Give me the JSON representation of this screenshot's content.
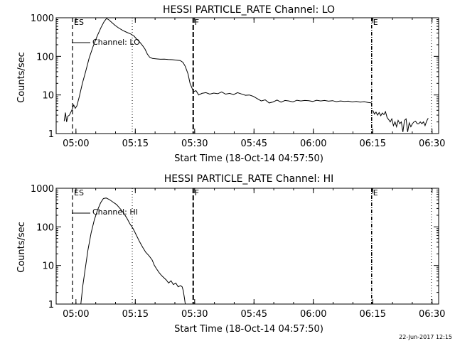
{
  "stamp": "22-Jun-2017 12:15",
  "chart_data": [
    {
      "type": "line",
      "title": "HESSI PARTICLE_RATE Channel: LO",
      "xlabel": "Start Time (18-Oct-14 04:57:50)",
      "ylabel": "Counts/sec",
      "yscale": "log",
      "ylim": [
        1,
        1000
      ],
      "yticks": [
        1,
        10,
        100,
        1000
      ],
      "ytick_labels": [
        "1",
        "10",
        "100",
        "1000"
      ],
      "xlim_minutes": [
        -2.8333,
        93.8333
      ],
      "xticks": [
        2.1667,
        17.1667,
        32.1667,
        47.1667,
        62.1667,
        77.1667,
        92.1667
      ],
      "xtick_labels": [
        "05:00",
        "05:15",
        "05:30",
        "05:45",
        "06:00",
        "06:15",
        "06:30"
      ],
      "grid": false,
      "legend": {
        "label": "Channel: LO",
        "placement": "upper-left"
      },
      "markers": [
        {
          "x": 1.3,
          "style": "dashed",
          "label": "E",
          "label2": "S"
        },
        {
          "x": 16.4,
          "style": "dotted"
        },
        {
          "x": 31.8,
          "style": "dashed-bold",
          "label": "F"
        },
        {
          "x": 76.9,
          "style": "dash-dot",
          "label": "E"
        },
        {
          "x": 92.0,
          "style": "dotted"
        }
      ],
      "segments": [
        {
          "name": "Channel: LO",
          "points": [
            [
              -0.8,
              2.1
            ],
            [
              -0.5,
              3.5
            ],
            [
              -0.2,
              2.0
            ],
            [
              0.1,
              2.8
            ],
            [
              0.5,
              3.0
            ],
            [
              1.1,
              4.0
            ],
            [
              1.6,
              5.5
            ],
            [
              2.0,
              4.5
            ],
            [
              2.4,
              5.2
            ],
            [
              3.0,
              9
            ],
            [
              3.8,
              20
            ],
            [
              4.6,
              40
            ],
            [
              5.5,
              90
            ],
            [
              6.5,
              180
            ],
            [
              7.5,
              330
            ],
            [
              8.5,
              560
            ],
            [
              9.3,
              800
            ],
            [
              9.9,
              960
            ],
            [
              10.5,
              880
            ],
            [
              11.2,
              760
            ],
            [
              12.0,
              640
            ],
            [
              13.0,
              540
            ],
            [
              14.0,
              470
            ],
            [
              15.0,
              420
            ],
            [
              16.0,
              380
            ],
            [
              16.8,
              340
            ],
            [
              17.5,
              280
            ],
            [
              18.2,
              240
            ],
            [
              19.0,
              190
            ],
            [
              19.6,
              155
            ],
            [
              20.2,
              115
            ],
            [
              20.8,
              95
            ],
            [
              21.5,
              88
            ],
            [
              22.5,
              86
            ],
            [
              23.5,
              84
            ],
            [
              24.5,
              85
            ],
            [
              25.5,
              83
            ],
            [
              26.5,
              82
            ],
            [
              27.5,
              80
            ],
            [
              28.5,
              78
            ],
            [
              29.2,
              70
            ],
            [
              29.8,
              55
            ],
            [
              30.5,
              35
            ],
            [
              31.0,
              20
            ],
            [
              31.5,
              15
            ],
            [
              31.8,
              12.5
            ]
          ]
        },
        {
          "name": "Channel: LO",
          "points": [
            [
              31.8,
              12
            ],
            [
              32.5,
              13
            ],
            [
              33.2,
              10
            ],
            [
              34.0,
              11
            ],
            [
              35.0,
              11.5
            ],
            [
              36.0,
              10.5
            ],
            [
              37.0,
              11.2
            ],
            [
              38.0,
              10.8
            ],
            [
              39.0,
              12
            ],
            [
              40.0,
              10.5
            ],
            [
              41.0,
              11
            ],
            [
              42.0,
              10.2
            ],
            [
              43.0,
              11.5
            ],
            [
              44.0,
              10.6
            ],
            [
              45.0,
              9.8
            ],
            [
              46.0,
              10
            ],
            [
              47.0,
              9.2
            ],
            [
              48.0,
              8
            ],
            [
              49.0,
              7
            ],
            [
              50.0,
              7.5
            ],
            [
              51.0,
              6.2
            ],
            [
              52.0,
              6.6
            ],
            [
              53.0,
              7.4
            ],
            [
              54.0,
              6.5
            ],
            [
              55.0,
              7.2
            ],
            [
              56.0,
              7.0
            ],
            [
              57.0,
              6.6
            ],
            [
              58.0,
              7.3
            ],
            [
              59.0,
              7.0
            ],
            [
              60.0,
              7.2
            ],
            [
              61.0,
              7.1
            ],
            [
              62.0,
              6.8
            ],
            [
              63.0,
              7.3
            ],
            [
              64.0,
              7.0
            ],
            [
              65.0,
              7.2
            ],
            [
              66.0,
              6.9
            ],
            [
              67.0,
              7.1
            ],
            [
              68.0,
              6.7
            ],
            [
              69.0,
              7.0
            ],
            [
              70.0,
              6.8
            ],
            [
              71.0,
              6.9
            ],
            [
              72.0,
              6.6
            ],
            [
              73.0,
              6.8
            ],
            [
              74.0,
              6.5
            ],
            [
              75.0,
              6.7
            ],
            [
              76.0,
              6.4
            ],
            [
              76.9,
              6.2
            ]
          ]
        },
        {
          "name": "Channel: LO",
          "points": [
            [
              77.2,
              4.0
            ],
            [
              77.6,
              3.2
            ],
            [
              78.0,
              3.6
            ],
            [
              78.4,
              3.0
            ],
            [
              78.8,
              3.5
            ],
            [
              79.2,
              2.9
            ],
            [
              79.6,
              3.4
            ],
            [
              80.0,
              3.1
            ],
            [
              80.4,
              3.7
            ],
            [
              80.8,
              2.6
            ],
            [
              81.2,
              2.3
            ],
            [
              81.6,
              2.0
            ],
            [
              82.0,
              2.4
            ],
            [
              82.4,
              1.6
            ],
            [
              82.8,
              2.0
            ],
            [
              83.2,
              1.5
            ],
            [
              83.6,
              2.2
            ],
            [
              84.0,
              1.8
            ],
            [
              84.4,
              2.0
            ],
            [
              84.8,
              1.1
            ],
            [
              85.2,
              2.2
            ],
            [
              85.6,
              2.4
            ],
            [
              86.0,
              1.1
            ],
            [
              86.4,
              1.9
            ],
            [
              86.8,
              1.5
            ],
            [
              87.2,
              1.8
            ],
            [
              87.6,
              2.0
            ],
            [
              88.0,
              2.1
            ],
            [
              88.4,
              1.8
            ],
            [
              88.8,
              1.8
            ],
            [
              89.2,
              2.0
            ],
            [
              89.6,
              1.8
            ],
            [
              90.0,
              2.0
            ],
            [
              90.4,
              1.6
            ],
            [
              90.8,
              2.1
            ],
            [
              91.2,
              2.5
            ]
          ]
        }
      ]
    },
    {
      "type": "line",
      "title": "HESSI PARTICLE_RATE Channel: HI",
      "xlabel": "Start Time (18-Oct-14 04:57:50)",
      "ylabel": "Counts/sec",
      "yscale": "log",
      "ylim": [
        1,
        1000
      ],
      "yticks": [
        1,
        10,
        100,
        1000
      ],
      "ytick_labels": [
        "1",
        "10",
        "100",
        "1000"
      ],
      "xlim_minutes": [
        -2.8333,
        93.8333
      ],
      "xticks": [
        2.1667,
        17.1667,
        32.1667,
        47.1667,
        62.1667,
        77.1667,
        92.1667
      ],
      "xtick_labels": [
        "05:00",
        "05:15",
        "05:30",
        "05:45",
        "06:00",
        "06:15",
        "06:30"
      ],
      "grid": false,
      "legend": {
        "label": "Channel: HI",
        "placement": "upper-left"
      },
      "markers": [
        {
          "x": 1.3,
          "style": "dashed",
          "label": "E",
          "label2": "S"
        },
        {
          "x": 16.4,
          "style": "dotted"
        },
        {
          "x": 31.8,
          "style": "dashed-bold",
          "label": "F"
        },
        {
          "x": 76.9,
          "style": "dash-dot",
          "label": "E"
        },
        {
          "x": 92.0,
          "style": "dotted"
        }
      ],
      "segments": [
        {
          "name": "Channel: HI",
          "points": [
            [
              3.4,
              1.0
            ],
            [
              3.9,
              3
            ],
            [
              4.5,
              8
            ],
            [
              5.2,
              25
            ],
            [
              6.0,
              70
            ],
            [
              6.8,
              150
            ],
            [
              7.6,
              270
            ],
            [
              8.4,
              420
            ],
            [
              9.1,
              540
            ],
            [
              9.8,
              560
            ],
            [
              10.6,
              510
            ],
            [
              11.5,
              440
            ],
            [
              12.4,
              380
            ],
            [
              13.3,
              300
            ],
            [
              14.2,
              230
            ],
            [
              15.0,
              170
            ],
            [
              15.8,
              120
            ],
            [
              16.6,
              90
            ],
            [
              17.4,
              62
            ],
            [
              18.2,
              42
            ],
            [
              19.0,
              30
            ],
            [
              19.8,
              22
            ],
            [
              20.6,
              18
            ],
            [
              21.4,
              14
            ],
            [
              22.0,
              10
            ],
            [
              22.6,
              8
            ],
            [
              23.2,
              6.5
            ],
            [
              23.8,
              5.5
            ],
            [
              24.4,
              4.8
            ],
            [
              25.0,
              4.2
            ],
            [
              25.6,
              3.5
            ],
            [
              26.2,
              4.0
            ],
            [
              26.8,
              3.2
            ],
            [
              27.4,
              3.5
            ],
            [
              28.0,
              2.8
            ],
            [
              28.6,
              3.0
            ],
            [
              29.0,
              2.8
            ],
            [
              29.3,
              2.2
            ],
            [
              29.6,
              1.4
            ],
            [
              29.8,
              1.0
            ]
          ]
        }
      ]
    }
  ]
}
